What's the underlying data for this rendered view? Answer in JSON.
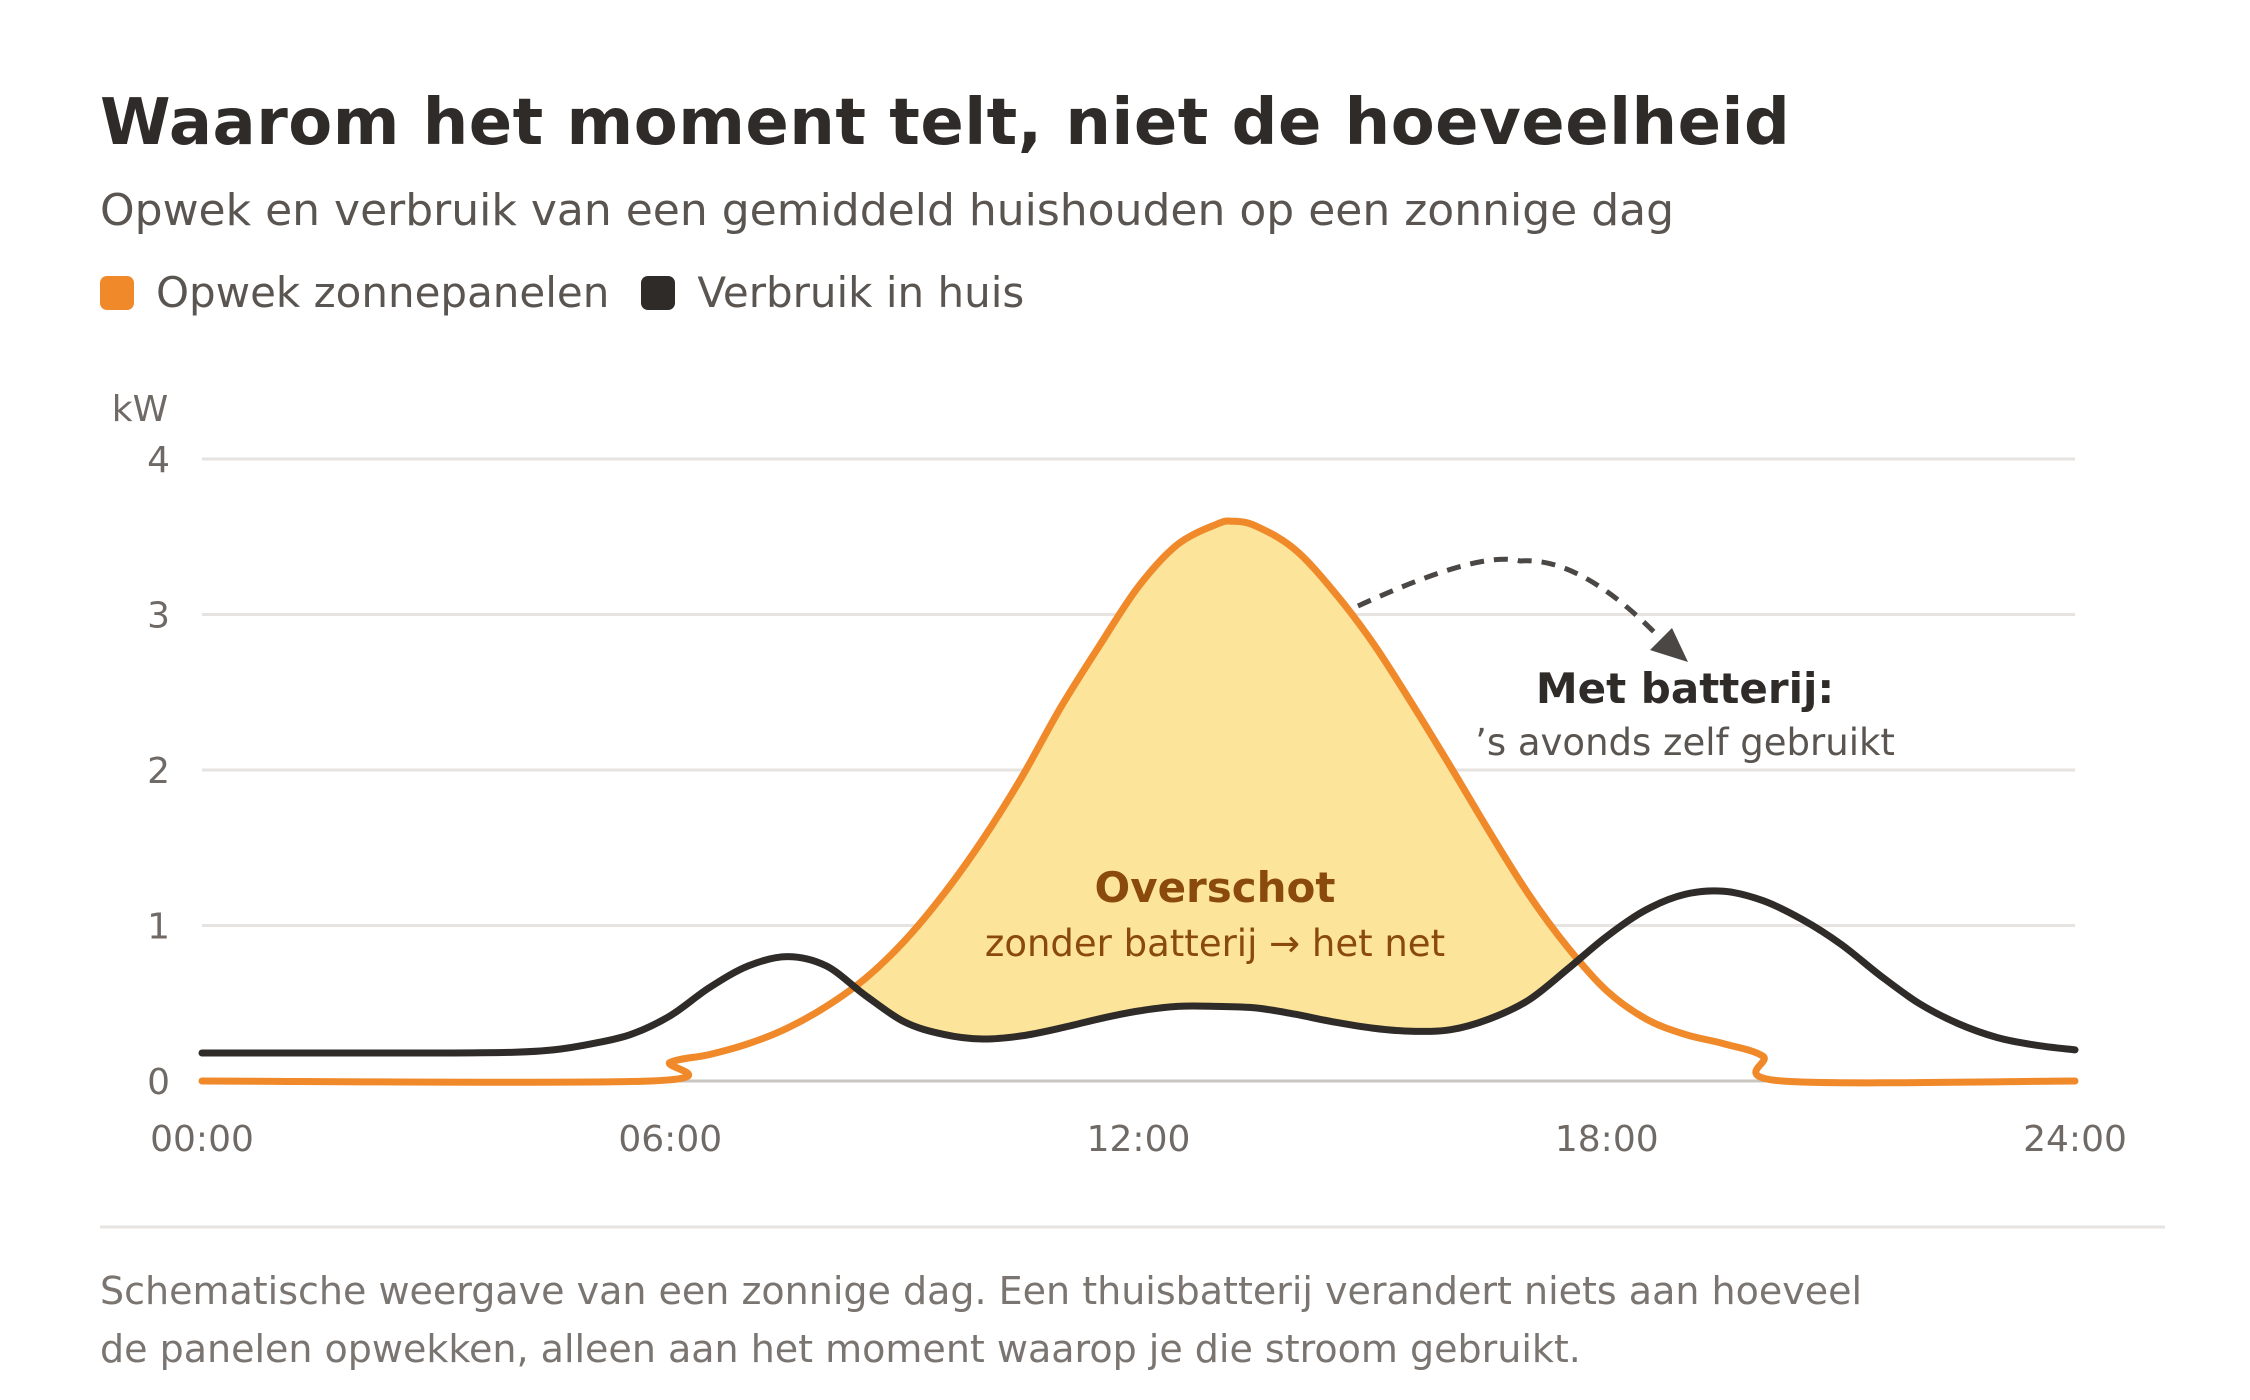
{
  "title": "Waarom het moment telt, niet de hoeveelheid",
  "subtitle": "Opwek en verbruik van een gemiddeld huishouden op een zonnige dag",
  "legend": [
    {
      "label": "Opwek zonnepanelen",
      "color": "#f0892a"
    },
    {
      "label": "Verbruik in huis",
      "color": "#2e2b28"
    }
  ],
  "annotations": {
    "surplus_title": "Overschot",
    "surplus_text": "zonder batterij → het net",
    "battery_title": "Met batterij:",
    "battery_text": "’s avonds zelf gebruikt"
  },
  "footnote": {
    "line1": "Schematische weergave van een zonnige dag. Een thuisbatterij verandert niets aan hoeveel",
    "line2": "de panelen opwekken, alleen aan het moment waarop je die stroom gebruikt."
  },
  "colors": {
    "production": "#f0892a",
    "consumption": "#2e2b28",
    "surplus_fill": "#fde49b",
    "surplus_text": "#8a4a0c",
    "grid": "#e6e3e0",
    "axis_text": "#6f6a66",
    "arrow": "#4a4744"
  },
  "chart_data": {
    "type": "line",
    "ylabel": "kW",
    "xlim": [
      0,
      24
    ],
    "ylim": [
      0,
      4
    ],
    "yticks": [
      0,
      1,
      2,
      3,
      4
    ],
    "xticks": [
      {
        "value": 0,
        "label": "00:00"
      },
      {
        "value": 6,
        "label": "06:00"
      },
      {
        "value": 12,
        "label": "12:00"
      },
      {
        "value": 18,
        "label": "18:00"
      },
      {
        "value": 24,
        "label": "24:00"
      }
    ],
    "grid": true,
    "legend_position": "top-left",
    "series": [
      {
        "name": "Opwek zonnepanelen",
        "x": [
          0,
          5.75,
          6.0,
          6.5,
          7.0,
          7.5,
          8.0,
          8.5,
          9.0,
          9.5,
          10.0,
          10.5,
          11.0,
          11.5,
          12.0,
          12.5,
          13.0,
          13.2,
          13.5,
          14.0,
          14.5,
          15.0,
          15.5,
          16.0,
          16.5,
          17.0,
          17.5,
          18.0,
          18.5,
          19.0,
          19.5,
          20.0,
          20.25,
          24
        ],
        "y": [
          0,
          0,
          0.12,
          0.17,
          0.24,
          0.34,
          0.48,
          0.66,
          0.9,
          1.2,
          1.55,
          1.95,
          2.4,
          2.8,
          3.18,
          3.45,
          3.58,
          3.6,
          3.57,
          3.42,
          3.15,
          2.82,
          2.43,
          2.02,
          1.6,
          1.2,
          0.86,
          0.58,
          0.4,
          0.3,
          0.24,
          0.16,
          0,
          0
        ]
      },
      {
        "name": "Verbruik in huis",
        "x": [
          0,
          1,
          2,
          3,
          4,
          4.5,
          5.0,
          5.5,
          6.0,
          6.5,
          7.0,
          7.5,
          8.0,
          8.5,
          9.0,
          9.5,
          10.0,
          10.5,
          11.0,
          11.5,
          12.0,
          12.5,
          13.0,
          13.5,
          14.0,
          14.5,
          15.0,
          15.5,
          16.0,
          16.5,
          17.0,
          17.5,
          18.0,
          18.5,
          19.0,
          19.5,
          20.0,
          20.5,
          21.0,
          21.5,
          22.0,
          22.5,
          23.0,
          23.5,
          24
        ],
        "y": [
          0.18,
          0.18,
          0.18,
          0.18,
          0.185,
          0.2,
          0.24,
          0.3,
          0.42,
          0.6,
          0.74,
          0.8,
          0.74,
          0.55,
          0.38,
          0.3,
          0.27,
          0.29,
          0.34,
          0.4,
          0.45,
          0.48,
          0.48,
          0.47,
          0.43,
          0.38,
          0.34,
          0.32,
          0.33,
          0.4,
          0.52,
          0.72,
          0.93,
          1.1,
          1.2,
          1.22,
          1.16,
          1.04,
          0.88,
          0.68,
          0.5,
          0.37,
          0.28,
          0.23,
          0.2
        ]
      }
    ]
  }
}
